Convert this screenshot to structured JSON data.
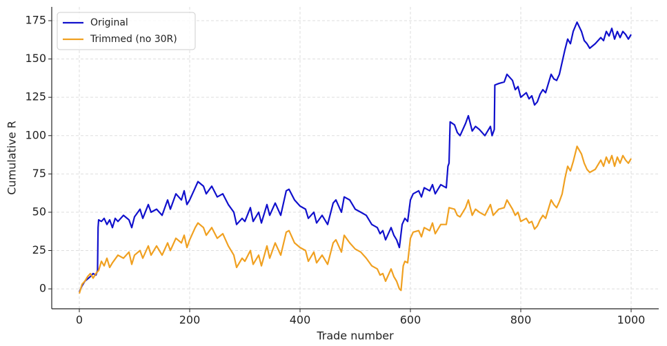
{
  "chart_data": {
    "type": "line",
    "xlabel": "Trade number",
    "ylabel": "Cumulative R",
    "xlim": [
      -50,
      1050
    ],
    "ylim": [
      -13,
      184
    ],
    "xticks": [
      0,
      200,
      400,
      600,
      800,
      1000
    ],
    "yticks": [
      0,
      25,
      50,
      75,
      100,
      125,
      150,
      175
    ],
    "grid": true,
    "legend": "upper left",
    "series": [
      {
        "name": "Original",
        "color": "#1010cc",
        "x": [
          0,
          5,
          10,
          20,
          25,
          30,
          33,
          34,
          35,
          40,
          45,
          50,
          55,
          60,
          65,
          70,
          80,
          90,
          95,
          100,
          110,
          115,
          125,
          130,
          140,
          150,
          160,
          165,
          175,
          185,
          190,
          195,
          200,
          210,
          215,
          225,
          230,
          240,
          250,
          260,
          270,
          280,
          285,
          295,
          300,
          310,
          315,
          325,
          330,
          340,
          345,
          355,
          365,
          375,
          380,
          390,
          400,
          410,
          415,
          425,
          430,
          440,
          450,
          460,
          465,
          475,
          480,
          490,
          500,
          510,
          520,
          530,
          540,
          545,
          550,
          555,
          565,
          570,
          575,
          580,
          585,
          590,
          595,
          600,
          605,
          615,
          620,
          625,
          635,
          640,
          645,
          655,
          665,
          668,
          670,
          672,
          680,
          685,
          690,
          700,
          705,
          712,
          718,
          725,
          735,
          745,
          748,
          752,
          753,
          760,
          770,
          775,
          785,
          790,
          795,
          800,
          810,
          815,
          820,
          825,
          830,
          835,
          840,
          845,
          850,
          855,
          860,
          865,
          870,
          875,
          880,
          885,
          890,
          895,
          902,
          910,
          915,
          920,
          925,
          935,
          945,
          950,
          955,
          960,
          965,
          970,
          975,
          980,
          985,
          990,
          995,
          1000
        ],
        "values": [
          -2,
          2,
          5,
          8,
          10,
          9,
          12,
          40,
          45,
          44,
          46,
          42,
          45,
          40,
          46,
          44,
          48,
          45,
          40,
          47,
          52,
          46,
          55,
          50,
          52,
          48,
          58,
          52,
          62,
          58,
          64,
          55,
          58,
          66,
          70,
          67,
          62,
          67,
          60,
          62,
          55,
          50,
          42,
          46,
          44,
          53,
          44,
          50,
          43,
          55,
          48,
          56,
          48,
          64,
          65,
          58,
          54,
          52,
          46,
          50,
          43,
          48,
          42,
          56,
          58,
          50,
          60,
          58,
          52,
          50,
          48,
          42,
          40,
          36,
          38,
          32,
          40,
          35,
          32,
          27,
          42,
          46,
          44,
          58,
          62,
          64,
          60,
          66,
          64,
          68,
          62,
          68,
          66,
          80,
          82,
          109,
          107,
          102,
          100,
          108,
          113,
          103,
          106,
          104,
          100,
          106,
          100,
          104,
          133,
          134,
          135,
          140,
          136,
          130,
          132,
          125,
          128,
          124,
          126,
          120,
          122,
          127,
          130,
          128,
          134,
          140,
          137,
          136,
          140,
          148,
          156,
          163,
          160,
          168,
          174,
          168,
          162,
          160,
          157,
          160,
          164,
          162,
          168,
          165,
          170,
          163,
          168,
          164,
          168,
          166,
          163,
          166
        ]
      },
      {
        "name": "Trimmed (no 30R)",
        "color": "#f0a020",
        "x": [
          0,
          5,
          10,
          15,
          20,
          25,
          30,
          35,
          40,
          45,
          50,
          55,
          60,
          70,
          80,
          90,
          95,
          100,
          110,
          115,
          125,
          130,
          140,
          150,
          160,
          165,
          175,
          185,
          190,
          195,
          200,
          210,
          215,
          225,
          230,
          240,
          250,
          260,
          270,
          280,
          285,
          295,
          300,
          310,
          315,
          325,
          330,
          340,
          345,
          355,
          365,
          375,
          380,
          390,
          400,
          410,
          415,
          425,
          430,
          440,
          450,
          460,
          465,
          475,
          480,
          490,
          500,
          510,
          520,
          530,
          540,
          545,
          550,
          555,
          565,
          570,
          575,
          580,
          583,
          587,
          590,
          595,
          600,
          605,
          615,
          620,
          625,
          635,
          640,
          645,
          655,
          665,
          670,
          680,
          685,
          690,
          700,
          705,
          712,
          718,
          725,
          735,
          745,
          750,
          760,
          770,
          775,
          785,
          790,
          795,
          800,
          810,
          815,
          820,
          825,
          830,
          835,
          840,
          845,
          850,
          855,
          860,
          865,
          870,
          875,
          880,
          885,
          890,
          895,
          902,
          910,
          915,
          920,
          925,
          935,
          945,
          950,
          955,
          960,
          965,
          970,
          975,
          980,
          985,
          990,
          995,
          1000
        ],
        "values": [
          -3,
          3,
          5,
          8,
          10,
          7,
          10,
          12,
          18,
          15,
          20,
          14,
          17,
          22,
          20,
          24,
          16,
          22,
          25,
          20,
          28,
          22,
          28,
          22,
          30,
          25,
          33,
          30,
          35,
          27,
          32,
          40,
          43,
          40,
          35,
          40,
          33,
          36,
          28,
          22,
          14,
          20,
          18,
          25,
          16,
          22,
          15,
          28,
          20,
          30,
          22,
          37,
          38,
          30,
          27,
          25,
          18,
          24,
          17,
          22,
          16,
          30,
          32,
          24,
          35,
          30,
          26,
          24,
          20,
          15,
          13,
          9,
          10,
          5,
          13,
          8,
          5,
          0,
          -1,
          15,
          18,
          17,
          33,
          37,
          38,
          34,
          40,
          38,
          43,
          36,
          42,
          42,
          53,
          52,
          48,
          47,
          53,
          58,
          48,
          52,
          50,
          48,
          55,
          48,
          52,
          53,
          58,
          52,
          48,
          50,
          44,
          46,
          43,
          44,
          39,
          41,
          45,
          48,
          46,
          52,
          58,
          55,
          53,
          57,
          62,
          72,
          80,
          77,
          83,
          93,
          88,
          82,
          78,
          76,
          78,
          84,
          80,
          86,
          82,
          87,
          80,
          86,
          82,
          87,
          84,
          82,
          85
        ]
      }
    ]
  }
}
